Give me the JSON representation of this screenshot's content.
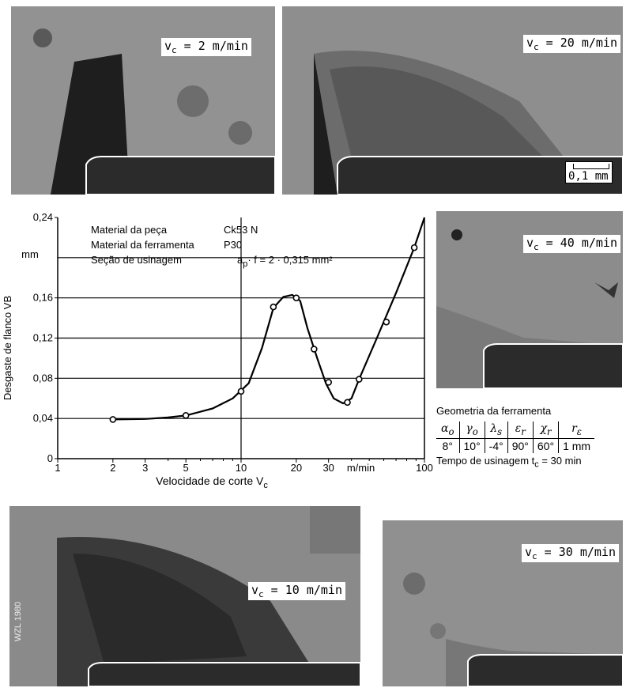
{
  "photos": {
    "p2": {
      "label": "v",
      "sub": "c",
      "text": " = 2 m/min"
    },
    "p20": {
      "label": "v",
      "sub": "c",
      "text": " = 20 m/min"
    },
    "p40": {
      "label": "v",
      "sub": "c",
      "text": " = 40 m/min"
    },
    "p10": {
      "label": "v",
      "sub": "c",
      "text": " = 10 m/min"
    },
    "p30": {
      "label": "v",
      "sub": "c",
      "text": " = 30 m/min"
    },
    "scale": "0,1 mm",
    "watermark": "WZL 1980"
  },
  "chart_data": {
    "type": "line",
    "x_scale": "log",
    "xlim": [
      1,
      100
    ],
    "ylim": [
      0,
      0.24
    ],
    "xlabel": "Velocidade de corte V",
    "xlabel_sub": "c",
    "x_unit": "m/min",
    "ylabel": "Desgaste de flanco VB",
    "y_unit": "mm",
    "x_ticks": [
      "1",
      "2",
      "3",
      "5",
      "10",
      "20",
      "30",
      "100"
    ],
    "y_ticks": [
      "0",
      "0,04",
      "0,08",
      "0,12",
      "0,16",
      "0,24"
    ],
    "grid": true,
    "annotations": [
      {
        "key": "Material da peça",
        "value": "Ck53 N"
      },
      {
        "key": "Material da ferramenta",
        "value": "P30"
      },
      {
        "key": "Seção de usinagem",
        "value": "a",
        "value_sub": "p",
        "value_rest": "· f = 2 · 0,315 mm²"
      }
    ],
    "points": [
      {
        "x": 2,
        "y": 0.039
      },
      {
        "x": 5,
        "y": 0.043
      },
      {
        "x": 10,
        "y": 0.067
      },
      {
        "x": 15,
        "y": 0.151
      },
      {
        "x": 20,
        "y": 0.16
      },
      {
        "x": 25,
        "y": 0.109
      },
      {
        "x": 30,
        "y": 0.076
      },
      {
        "x": 38,
        "y": 0.056
      },
      {
        "x": 44,
        "y": 0.079
      },
      {
        "x": 62,
        "y": 0.136
      },
      {
        "x": 88,
        "y": 0.21
      }
    ],
    "curve": [
      {
        "x": 2,
        "y": 0.039
      },
      {
        "x": 3,
        "y": 0.0395
      },
      {
        "x": 4,
        "y": 0.041
      },
      {
        "x": 5,
        "y": 0.043
      },
      {
        "x": 7,
        "y": 0.05
      },
      {
        "x": 9,
        "y": 0.06
      },
      {
        "x": 11,
        "y": 0.075
      },
      {
        "x": 13,
        "y": 0.11
      },
      {
        "x": 15,
        "y": 0.15
      },
      {
        "x": 17,
        "y": 0.161
      },
      {
        "x": 19,
        "y": 0.163
      },
      {
        "x": 21,
        "y": 0.157
      },
      {
        "x": 23,
        "y": 0.13
      },
      {
        "x": 26,
        "y": 0.1
      },
      {
        "x": 29,
        "y": 0.075
      },
      {
        "x": 32,
        "y": 0.06
      },
      {
        "x": 36,
        "y": 0.055
      },
      {
        "x": 40,
        "y": 0.06
      },
      {
        "x": 44,
        "y": 0.079
      },
      {
        "x": 55,
        "y": 0.12
      },
      {
        "x": 70,
        "y": 0.165
      },
      {
        "x": 88,
        "y": 0.21
      },
      {
        "x": 100,
        "y": 0.24
      }
    ]
  },
  "geometry": {
    "title": "Geometria da ferramenta",
    "headers": [
      {
        "sym": "α",
        "sub": "o"
      },
      {
        "sym": "γ",
        "sub": "o"
      },
      {
        "sym": "λ",
        "sub": "s"
      },
      {
        "sym": "ε",
        "sub": "r"
      },
      {
        "sym": "χ",
        "sub": "r"
      },
      {
        "sym": "r",
        "sub": "ε"
      }
    ],
    "values": [
      "8°",
      "10°",
      "-4°",
      "90°",
      "60°",
      "1 mm"
    ],
    "tempo_label": "Tempo de usinagem t",
    "tempo_sub": "c",
    "tempo_value": "= 30 min"
  }
}
